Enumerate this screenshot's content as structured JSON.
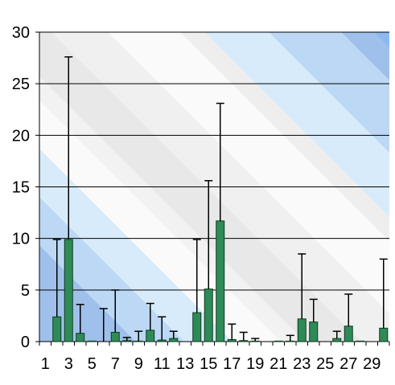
{
  "chart_data": {
    "type": "bar",
    "title": "",
    "xlabel": "",
    "ylabel": "",
    "ylim": [
      0,
      30
    ],
    "y_ticks": [
      0,
      5,
      10,
      15,
      20,
      25,
      30
    ],
    "x_tick_labels": [
      "1",
      "3",
      "5",
      "7",
      "9",
      "11",
      "13",
      "15",
      "17",
      "19",
      "21",
      "23",
      "25",
      "27",
      "29"
    ],
    "grid": "horizontal",
    "legend": "none",
    "categories": [
      1,
      2,
      3,
      4,
      5,
      6,
      7,
      8,
      9,
      10,
      11,
      12,
      13,
      14,
      15,
      16,
      17,
      18,
      19,
      20,
      21,
      22,
      23,
      24,
      25,
      26,
      27,
      28,
      29,
      30
    ],
    "series": [
      {
        "values": [
          0,
          2.4,
          9.9,
          0.8,
          0.05,
          0,
          0.9,
          0.1,
          0.05,
          1.1,
          0.15,
          0.3,
          0,
          2.8,
          5.1,
          11.7,
          0.2,
          0.1,
          0.05,
          0,
          0.05,
          0.05,
          2.2,
          1.9,
          0,
          0.3,
          1.5,
          0.05,
          0,
          1.3
        ],
        "error_upper": [
          0,
          9.9,
          27.6,
          3.6,
          0,
          3.2,
          5.0,
          0.4,
          1.0,
          3.7,
          2.4,
          1.0,
          0,
          9.9,
          15.6,
          23.1,
          1.7,
          0.9,
          0.3,
          0,
          0,
          0.6,
          8.5,
          4.1,
          0,
          1.0,
          4.6,
          0,
          0,
          8.0
        ]
      }
    ],
    "colors": {
      "bar_fill": "#2e8b57",
      "bar_stroke": "#0d3b1e",
      "band_blue_dark": "#9fc0ea",
      "band_blue_mid": "#bcd8f4",
      "band_blue_light": "#d8ebfb",
      "band_gray": "#e8e8e8",
      "band_white": "#fafafa"
    }
  }
}
